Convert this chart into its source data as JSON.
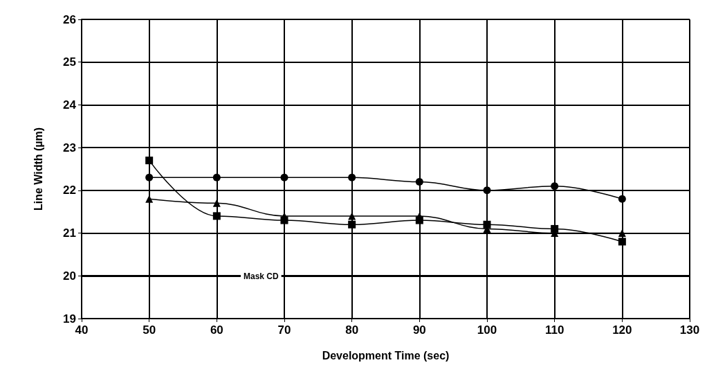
{
  "chart_data": {
    "type": "line",
    "xlabel": "Development Time (sec)",
    "ylabel": "Line Width (µm)",
    "x": [
      50,
      60,
      70,
      80,
      90,
      100,
      110,
      120
    ],
    "series": [
      {
        "color": "#000000",
        "marker": "circle",
        "values": [
          22.3,
          22.3,
          22.3,
          22.3,
          22.2,
          22.0,
          22.1,
          21.8
        ]
      },
      {
        "color": "#000000",
        "marker": "square",
        "values": [
          22.7,
          21.4,
          21.3,
          21.2,
          21.3,
          21.2,
          21.1,
          20.8
        ]
      },
      {
        "color": "#000000",
        "marker": "triangle",
        "values": [
          21.8,
          21.7,
          21.4,
          21.4,
          21.4,
          21.1,
          21.0,
          21.0
        ]
      }
    ],
    "xlim": [
      40,
      130
    ],
    "xticks": [
      40,
      50,
      60,
      70,
      80,
      90,
      100,
      110,
      120,
      130
    ],
    "ylim": [
      19,
      26
    ],
    "yticks": [
      19,
      20,
      21,
      22,
      23,
      24,
      25,
      26
    ],
    "grid": true,
    "line_style": "solid",
    "ref_lines": [
      {
        "axis": "y",
        "value": 20,
        "label": "Mask CD",
        "color": "#000000"
      }
    ]
  }
}
